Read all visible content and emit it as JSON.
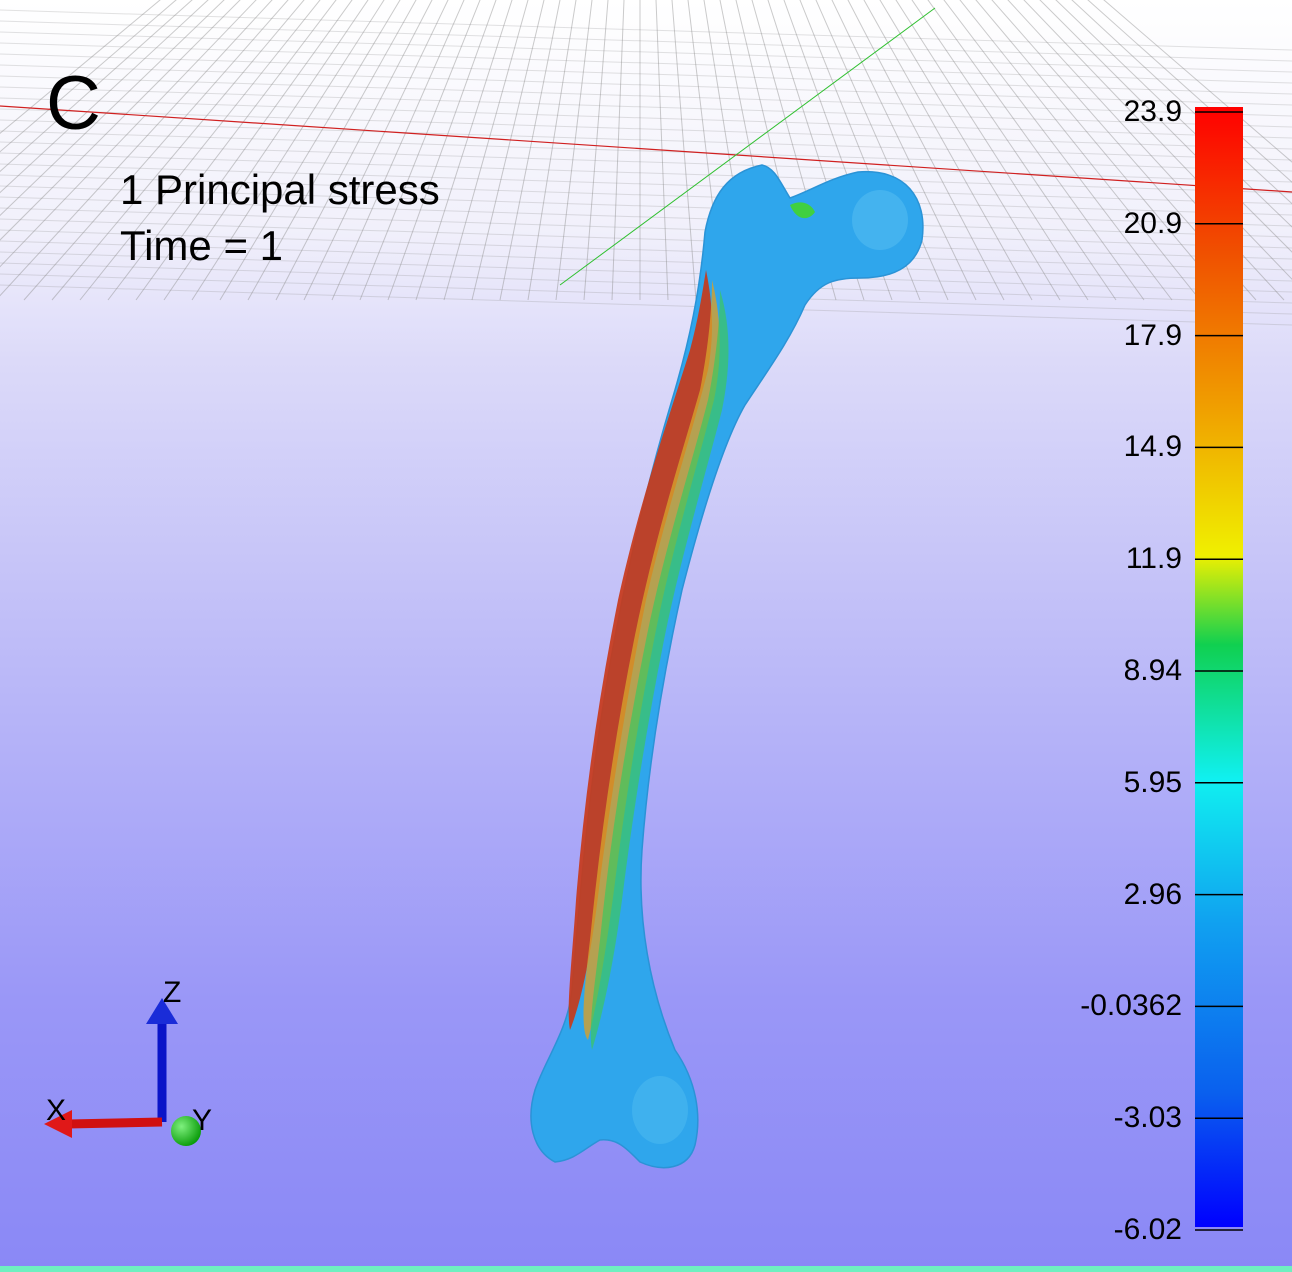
{
  "panel_letter": "C",
  "info": {
    "title": "1 Principal stress",
    "time": "Time = 1"
  },
  "colorbar": {
    "min": -6.02,
    "max": 23.9,
    "tick_labels": [
      "23.9",
      "20.9",
      "17.9",
      "14.9",
      "11.9",
      "8.94",
      "5.95",
      "2.96",
      "-0.0362",
      "-3.03",
      "-6.02"
    ],
    "colors": [
      "#0000ff",
      "#0a60ee",
      "#10a0f0",
      "#10f0f0",
      "#10d050",
      "#f0f000",
      "#f0a000",
      "#f05000",
      "#ff0000"
    ]
  },
  "orientation_axes": {
    "x": "X",
    "y": "Y",
    "z": "Z"
  },
  "colors": {
    "bone_base": "#2fa6ec",
    "stress_high": "#c02a10",
    "background_top": "#ffffff",
    "background_bottom": "#8a88f6",
    "bottom_strip": "#6ef0c0"
  }
}
